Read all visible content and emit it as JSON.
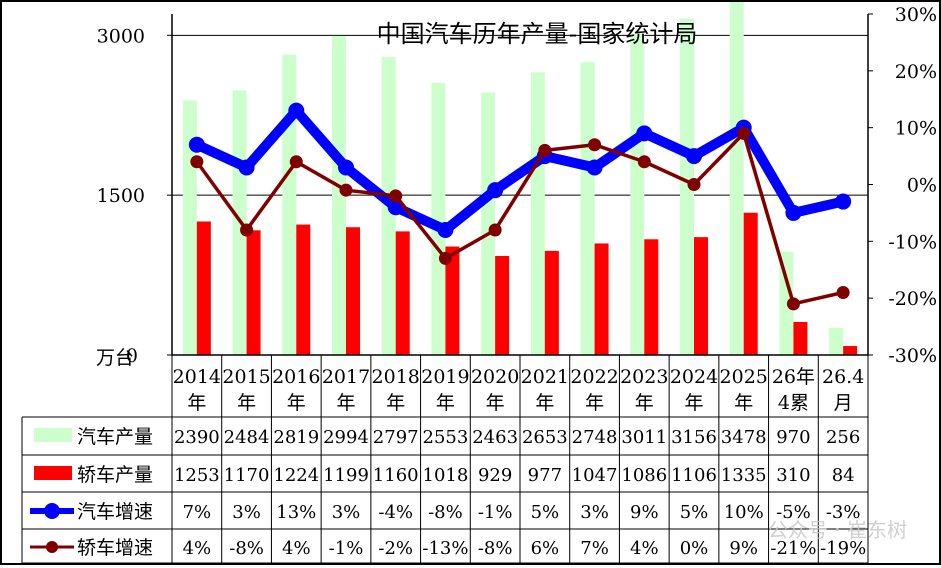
{
  "chart_data": {
    "type": "bar",
    "title": "中国汽车历年产量-国家统计局",
    "y_left_unit": "万台",
    "y_left_ticks": [
      "0",
      "1500",
      "3000"
    ],
    "y_left_range": [
      0,
      3200
    ],
    "y_right_ticks": [
      "-30%",
      "-20%",
      "-10%",
      "0%",
      "10%",
      "20%",
      "30%"
    ],
    "y_right_range": [
      -30,
      30
    ],
    "categories": [
      [
        "2014",
        "年"
      ],
      [
        "2015",
        "年"
      ],
      [
        "2016",
        "年"
      ],
      [
        "2017",
        "年"
      ],
      [
        "2018",
        "年"
      ],
      [
        "2019",
        "年"
      ],
      [
        "2020",
        "年"
      ],
      [
        "2021",
        "年"
      ],
      [
        "2022",
        "年"
      ],
      [
        "2023",
        "年"
      ],
      [
        "2024",
        "年"
      ],
      [
        "2025",
        "年"
      ],
      [
        "26年",
        "4累"
      ],
      [
        "26.4",
        "月"
      ]
    ],
    "series": [
      {
        "name": "汽车产量",
        "type": "bar",
        "axis": "left",
        "color": "#ccffcc",
        "values": [
          2390,
          2484,
          2819,
          2994,
          2797,
          2553,
          2463,
          2653,
          2748,
          3011,
          3156,
          3478,
          970,
          256
        ],
        "labels": [
          "2390",
          "2484",
          "2819",
          "2994",
          "2797",
          "2553",
          "2463",
          "2653",
          "2748",
          "3011",
          "3156",
          "3478",
          "970",
          "256"
        ]
      },
      {
        "name": "轿车产量",
        "type": "bar",
        "axis": "left",
        "color": "#ff0000",
        "values": [
          1253,
          1170,
          1224,
          1199,
          1160,
          1018,
          929,
          977,
          1047,
          1086,
          1106,
          1335,
          310,
          84
        ],
        "labels": [
          "1253",
          "1170",
          "1224",
          "1199",
          "1160",
          "1018",
          "929",
          "977",
          "1047",
          "1086",
          "1106",
          "1335",
          "310",
          "84"
        ]
      },
      {
        "name": "汽车增速",
        "type": "line",
        "axis": "right",
        "color": "#0000ff",
        "values": [
          7,
          3,
          13,
          3,
          -4,
          -8,
          -1,
          5,
          3,
          9,
          5,
          10,
          -5,
          -3
        ],
        "labels": [
          "7%",
          "3%",
          "13%",
          "3%",
          "-4%",
          "-8%",
          "-1%",
          "5%",
          "3%",
          "9%",
          "5%",
          "10%",
          "-5%",
          "-3%"
        ]
      },
      {
        "name": "轿车增速",
        "type": "line",
        "axis": "right",
        "color": "#800000",
        "values": [
          4,
          -8,
          4,
          -1,
          -2,
          -13,
          -8,
          6,
          7,
          4,
          0,
          9,
          -21,
          -19
        ],
        "labels": [
          "4%",
          "-8%",
          "4%",
          "-1%",
          "-2%",
          "-13%",
          "-8%",
          "6%",
          "7%",
          "4%",
          "0%",
          "9%",
          "-21%",
          "-19%"
        ]
      }
    ],
    "legend_placement": "data table rows below the chart",
    "gridlines": true,
    "watermark": "公众号 · 崔东树"
  }
}
